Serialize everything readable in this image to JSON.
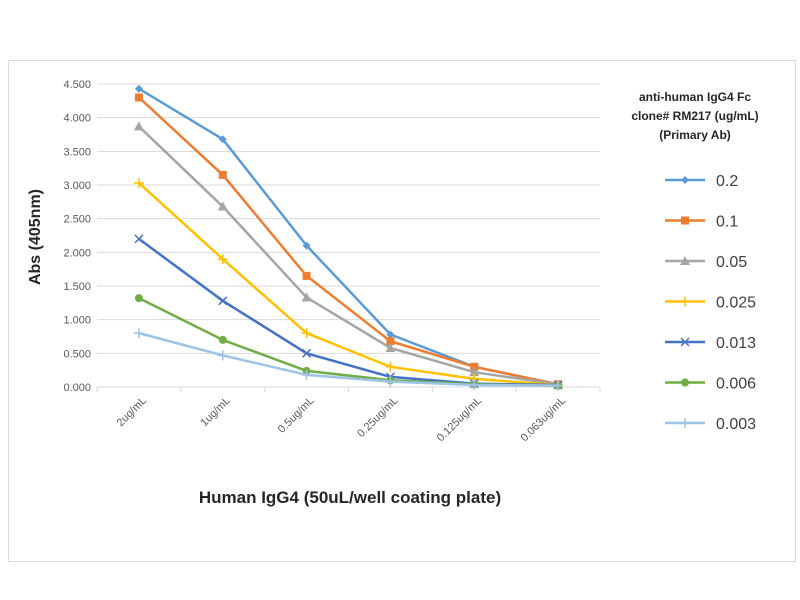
{
  "chart_data": {
    "type": "line",
    "title": "",
    "xlabel": "Human IgG4 (50uL/well coating plate)",
    "ylabel": "Abs (405nm)",
    "ylim": [
      0,
      4.5
    ],
    "yticks": [
      "0.000",
      "0.500",
      "1.000",
      "1.500",
      "2.000",
      "2.500",
      "3.000",
      "3.500",
      "4.000",
      "4.500"
    ],
    "grid": true,
    "legend_position": "right",
    "legend_title": [
      "anti-human IgG4 Fc",
      "clone# RM217 (ug/mL)",
      "(Primary Ab)"
    ],
    "categories": [
      "2ug/mL",
      "1ug/mL",
      "0.5ug/mL",
      "0.25ug/mL",
      "0.125ug/mL",
      "0.063ug/mL"
    ],
    "series": [
      {
        "name": "0.2",
        "color": "#5B9BD5",
        "marker": "diamond",
        "values": [
          4.43,
          3.68,
          2.1,
          0.78,
          0.3,
          0.04
        ]
      },
      {
        "name": "0.1",
        "color": "#ED7D31",
        "marker": "square",
        "values": [
          4.3,
          3.15,
          1.65,
          0.68,
          0.3,
          0.04
        ]
      },
      {
        "name": "0.05",
        "color": "#A5A5A5",
        "marker": "triangle",
        "values": [
          3.87,
          2.68,
          1.33,
          0.58,
          0.22,
          0.04
        ]
      },
      {
        "name": "0.025",
        "color": "#FFC000",
        "marker": "cross",
        "values": [
          3.03,
          1.9,
          0.8,
          0.3,
          0.12,
          0.03
        ]
      },
      {
        "name": "0.013",
        "color": "#4472C4",
        "marker": "x",
        "values": [
          2.2,
          1.28,
          0.5,
          0.15,
          0.05,
          0.03
        ]
      },
      {
        "name": "0.006",
        "color": "#70AD47",
        "marker": "circle",
        "values": [
          1.32,
          0.7,
          0.24,
          0.1,
          0.04,
          0.02
        ]
      },
      {
        "name": "0.003",
        "color": "#9DC3E6",
        "marker": "plus",
        "values": [
          0.8,
          0.47,
          0.18,
          0.08,
          0.03,
          0.02
        ]
      }
    ]
  }
}
